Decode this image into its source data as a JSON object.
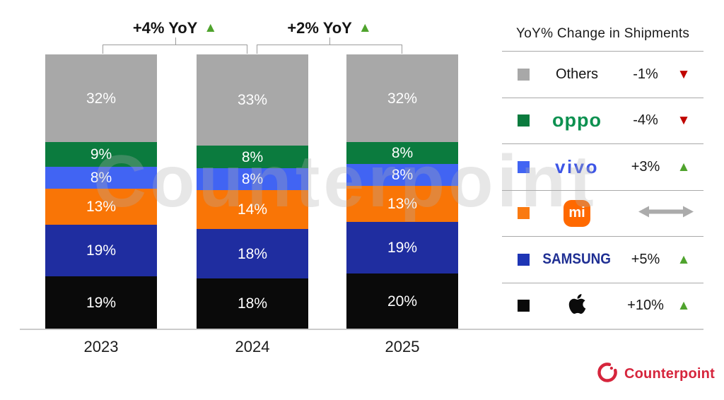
{
  "watermark": "Counterpoint",
  "chart_data": {
    "type": "bar",
    "subtype": "stacked-percent",
    "title": "",
    "xlabel": "",
    "ylabel": "",
    "ylim": [
      0,
      100
    ],
    "grid": false,
    "legend_position": "right",
    "categories": [
      "2023",
      "2024",
      "2025"
    ],
    "value_suffix": "%",
    "series": [
      {
        "name": "Apple",
        "color": "#0a0a0a",
        "values": [
          19,
          18,
          20
        ]
      },
      {
        "name": "Samsung",
        "color": "#1f2da0",
        "values": [
          19,
          18,
          19
        ]
      },
      {
        "name": "Xiaomi",
        "color": "#f97506",
        "values": [
          13,
          14,
          13
        ]
      },
      {
        "name": "vivo",
        "color": "#4164f3",
        "values": [
          8,
          8,
          8
        ]
      },
      {
        "name": "OPPO",
        "color": "#0b7b3e",
        "values": [
          9,
          8,
          8
        ]
      },
      {
        "name": "Others",
        "color": "#a8a8a8",
        "values": [
          32,
          33,
          32
        ]
      }
    ],
    "annotations": [
      {
        "label": "+4% YoY",
        "direction": "up",
        "between": [
          "2023",
          "2024"
        ]
      },
      {
        "label": "+2% YoY",
        "direction": "up",
        "between": [
          "2024",
          "2025"
        ]
      }
    ]
  },
  "legend": {
    "title": "YoY% Change in Shipments",
    "rows": [
      {
        "key": "others",
        "brand": "Others",
        "logo_text": "Others",
        "swatch_color": "#a8a8a8",
        "change": "-1%",
        "direction": "down"
      },
      {
        "key": "oppo",
        "brand": "OPPO",
        "logo_text": "oppo",
        "swatch_color": "#0b7b3e",
        "change": "-4%",
        "direction": "down"
      },
      {
        "key": "vivo",
        "brand": "vivo",
        "logo_text": "vivo",
        "swatch_color": "#4164f3",
        "change": "+3%",
        "direction": "up"
      },
      {
        "key": "xiaomi",
        "brand": "Xiaomi",
        "logo_text": "mi",
        "swatch_color": "#fa7a10",
        "change": "",
        "direction": "flat"
      },
      {
        "key": "samsung",
        "brand": "Samsung",
        "logo_text": "SAMSUNG",
        "swatch_color": "#1e35b5",
        "change": "+5%",
        "direction": "up"
      },
      {
        "key": "apple",
        "brand": "Apple",
        "logo_text": "",
        "swatch_color": "#0a0a0a",
        "change": "+10%",
        "direction": "up"
      }
    ]
  },
  "branding": {
    "logo_text": "Counterpoint",
    "color": "#d6253c"
  },
  "colors": {
    "up_triangle": "#4fa32d",
    "down_triangle": "#c00500",
    "flat_arrow": "#ababab",
    "axis_line": "#cbcbcb",
    "separator": "#a9a9a9",
    "bracket": "#9c9c9c",
    "segment_label": "#ffffff"
  }
}
